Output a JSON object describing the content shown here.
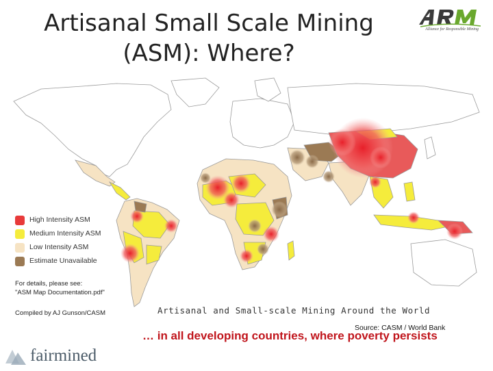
{
  "header": {
    "title_line1": "Artisanal Small Scale Mining",
    "title_line2": "(ASM): Where?"
  },
  "arm_logo": {
    "wordmark": "ARM",
    "tagline": "Alliance for Responsible Mining",
    "color": "#3a3a3a",
    "accent": "#6aa82e"
  },
  "legend": {
    "items": [
      {
        "label": "High Intensity ASM",
        "color": "#e83a3a"
      },
      {
        "label": "Medium Intensity ASM",
        "color": "#f5ec3c"
      },
      {
        "label": "Low Intensity ASM",
        "color": "#f6e3c3"
      },
      {
        "label": "Estimate Unavailable",
        "color": "#9b7a54"
      }
    ]
  },
  "details": {
    "line1": "For details, please see:",
    "line2": "\"ASM Map Documentation.pdf\""
  },
  "compiled_by": "Compiled by AJ Gunson/CASM",
  "map_caption": "Artisanal and Small-scale Mining Around the World",
  "source": "Source: CASM / World Bank",
  "tagline": "… in all developing countries, where poverty persists",
  "fairmined_logo": {
    "wordmark": "fairmined",
    "color": "#4a5a67",
    "icon_color": "#9aaab8"
  },
  "map_colors": {
    "ocean": "#ffffff",
    "land_default": "#ffffff",
    "border": "#9a9a9a",
    "high": "#e83a3a",
    "medium": "#f5ec3c",
    "low": "#f6e3c3",
    "unavailable": "#9b7a54"
  }
}
